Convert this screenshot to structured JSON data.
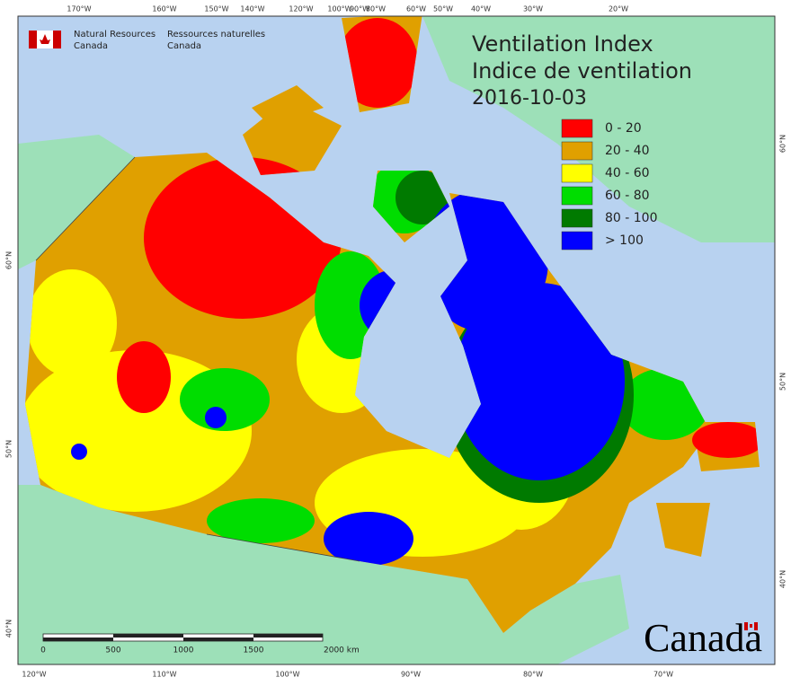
{
  "header": {
    "agency_en": [
      "Natural Resources",
      "Canada"
    ],
    "agency_fr": [
      "Ressources naturelles",
      "Canada"
    ]
  },
  "title": [
    "Ventilation Index",
    "Indice de ventilation"
  ],
  "date": "2016-10-03",
  "legend": [
    {
      "label": "0 - 20",
      "color": "#ff0000"
    },
    {
      "label": "20 - 40",
      "color": "#e0a000"
    },
    {
      "label": "40 - 60",
      "color": "#ffff00"
    },
    {
      "label": "60 - 80",
      "color": "#00dd00"
    },
    {
      "label": "80 - 100",
      "color": "#007a00"
    },
    {
      "label": "> 100",
      "color": "#0000ff"
    }
  ],
  "graticule": {
    "top": [
      "170°W",
      "160°W",
      "150°W",
      "140°W",
      "120°W",
      "100°W",
      "90°W",
      "80°W",
      "60°W",
      "50°W",
      "40°W",
      "30°W",
      "20°W"
    ],
    "bottom": [
      "120°W",
      "110°W",
      "100°W",
      "90°W",
      "80°W",
      "70°W"
    ],
    "left": [
      "60°N",
      "50°N",
      "40°N"
    ],
    "right": [
      "60°N",
      "50°N",
      "40°N"
    ]
  },
  "scale_bar": {
    "labels": [
      "0",
      "500",
      "1000",
      "1500",
      "2000 km"
    ]
  },
  "wordmark": "Canada"
}
